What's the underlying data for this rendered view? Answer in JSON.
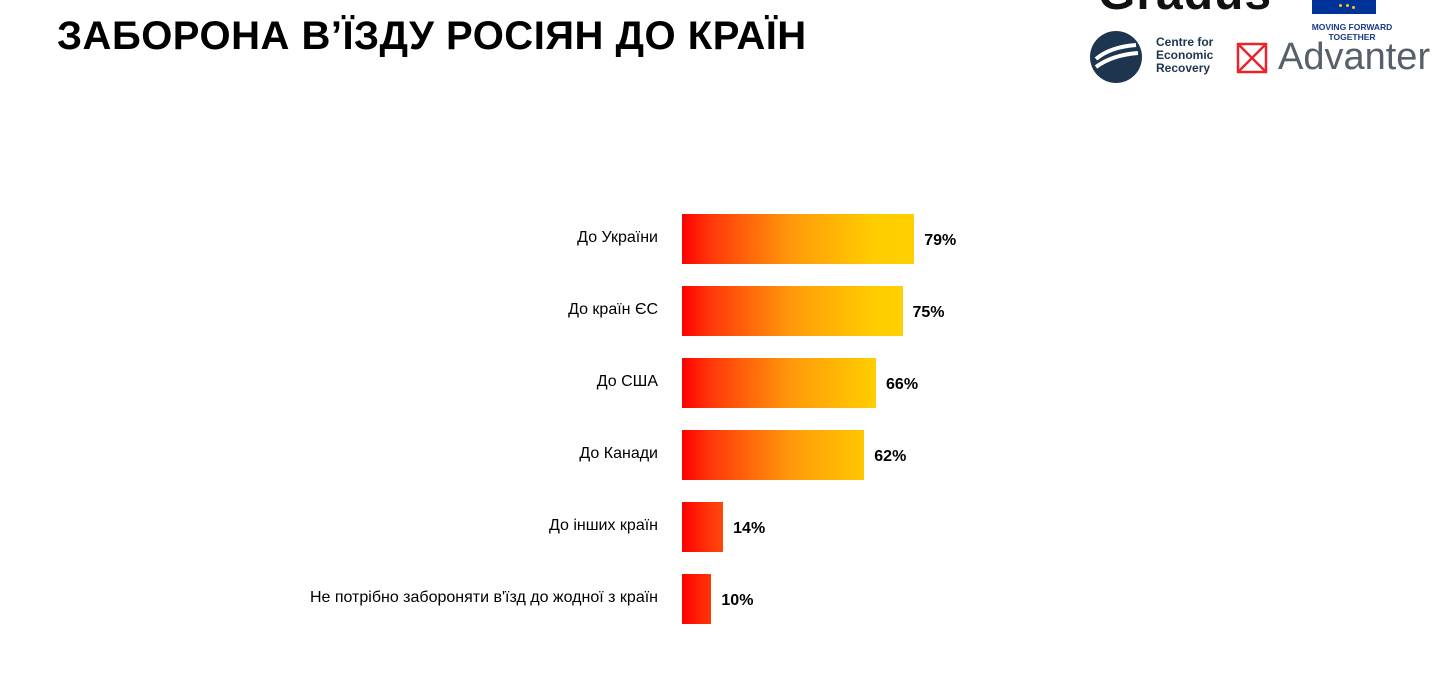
{
  "title": "ЗАБОРОНА В’ЇЗДУ РОСІЯН ДО КРАЇН",
  "logos": {
    "gradus": "Gradus",
    "eu_text_line1": "MOVING FORWARD",
    "eu_text_line2": "TOGETHER",
    "cer_line1": "Centre for",
    "cer_line2": "Economic",
    "cer_line3": "Recovery",
    "advanter": "Advanter"
  },
  "colors": {
    "bar_start": "#ff0000",
    "bar_end": "#ffd000"
  },
  "chart_data": {
    "type": "bar",
    "orientation": "horizontal",
    "categories": [
      "До України",
      "До країн ЄС",
      "До США",
      "До Канади",
      "До інших країн",
      "Не потрібно забороняти в'їзд до жодної з країн"
    ],
    "values": [
      79,
      75,
      66,
      62,
      14,
      10
    ],
    "value_labels": [
      "79%",
      "75%",
      "66%",
      "62%",
      "14%",
      "10%"
    ],
    "unit": "%",
    "xlim": [
      0,
      100
    ],
    "grid": false,
    "legend": "none"
  }
}
